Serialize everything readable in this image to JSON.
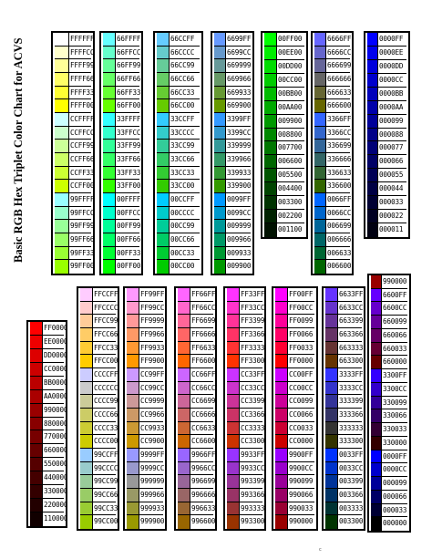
{
  "page": {
    "title": "Basic RGB Hex Triplet Color Chart for ACVS",
    "footnote": "c"
  },
  "columns": [
    {
      "name": "col-ffff",
      "cells": [
        "FFFFFF",
        "FFFFCC",
        "FFFF99",
        "FFFF66",
        "FFFF33",
        "FFFF00",
        "CCFFFF",
        "CCFFCC",
        "CCFF99",
        "CCFF66",
        "CCFF33",
        "CCFF00",
        "99FFFF",
        "99FFCC",
        "99FF99",
        "99FF66",
        "99FF33",
        "99FF00"
      ]
    },
    {
      "name": "col-66ff",
      "cells": [
        "66FFFF",
        "66FFCC",
        "66FF99",
        "66FF66",
        "66FF33",
        "66FF00",
        "33FFFF",
        "33FFCC",
        "33FF99",
        "33FF66",
        "33FF33",
        "33FF00",
        "00FFFF",
        "00FFCC",
        "00FF99",
        "00FF66",
        "00FF33",
        "00FF00"
      ]
    },
    {
      "name": "col-66cc",
      "cells": [
        "66CCFF",
        "66CCCC",
        "66CC99",
        "66CC66",
        "66CC33",
        "66CC00",
        "33CCFF",
        "33CCCC",
        "33CC99",
        "33CC66",
        "33CC33",
        "33CC00",
        "00CCFF",
        "00CCCC",
        "00CC99",
        "00CC66",
        "00CC33",
        "00CC00"
      ]
    },
    {
      "name": "col-6699",
      "cells": [
        "6699FF",
        "6699CC",
        "669999",
        "669966",
        "669933",
        "669900",
        "3399FF",
        "3399CC",
        "339999",
        "339966",
        "339933",
        "339900",
        "0099FF",
        "0099CC",
        "009999",
        "009966",
        "009933",
        "009900"
      ]
    },
    {
      "name": "col-00ff",
      "cells": [
        "00FF00",
        "00EE00",
        "00DD00",
        "00CC00",
        "00BB00",
        "00AA00",
        "009900",
        "008800",
        "007700",
        "006600",
        "005500",
        "004400",
        "003300",
        "002200",
        "001100"
      ]
    },
    {
      "name": "col-6666",
      "cells": [
        "6666FF",
        "6666CC",
        "666699",
        "666666",
        "666633",
        "666600",
        "3366FF",
        "3366CC",
        "336699",
        "336666",
        "336633",
        "336600",
        "0066FF",
        "0066CC",
        "006699",
        "006666",
        "006633",
        "006600"
      ]
    },
    {
      "name": "col-0000-blue",
      "cells": [
        "0000FF",
        "0000EE",
        "0000DD",
        "0000CC",
        "0000BB",
        "0000AA",
        "000099",
        "000088",
        "000077",
        "000066",
        "000055",
        "000044",
        "000033",
        "000022",
        "000011"
      ]
    },
    {
      "name": "col-ff0000",
      "cells": [
        "FF0000",
        "EE0000",
        "DD0000",
        "CC0000",
        "BB0000",
        "AA0000",
        "990000",
        "880000",
        "770000",
        "660000",
        "550000",
        "440000",
        "330000",
        "220000",
        "110000"
      ]
    },
    {
      "name": "col-ffcc",
      "cells": [
        "FFCCFF",
        "FFCCCC",
        "FFCC99",
        "FFCC66",
        "FFCC33",
        "FFCC00",
        "CCCCFF",
        "CCCCCC",
        "CCCC99",
        "CCCC66",
        "CCCC33",
        "CCCC00",
        "99CCFF",
        "99CCCC",
        "99CC99",
        "99CC66",
        "99CC33",
        "99CC00"
      ]
    },
    {
      "name": "col-ff99",
      "cells": [
        "FF99FF",
        "FF99CC",
        "FF9999",
        "FF9966",
        "FF9933",
        "FF9900",
        "CC99FF",
        "CC99CC",
        "CC9999",
        "CC9966",
        "CC9933",
        "CC9900",
        "9999FF",
        "9999CC",
        "999999",
        "999966",
        "999933",
        "999900"
      ]
    },
    {
      "name": "col-ff66",
      "cells": [
        "FF66FF",
        "FF66CC",
        "FF6699",
        "FF6666",
        "FF6633",
        "FF6600",
        "CC66FF",
        "CC66CC",
        "CC6699",
        "CC6666",
        "CC6633",
        "CC6600",
        "9966FF",
        "9966CC",
        "996699",
        "996666",
        "996633",
        "996600"
      ]
    },
    {
      "name": "col-ff33",
      "cells": [
        "FF33FF",
        "FF33CC",
        "FF3399",
        "FF3366",
        "FF3333",
        "FF3300",
        "CC33FF",
        "CC33CC",
        "CC3399",
        "CC3366",
        "CC3333",
        "CC3300",
        "9933FF",
        "9933CC",
        "993399",
        "993366",
        "993333",
        "993300"
      ]
    },
    {
      "name": "col-ff00",
      "cells": [
        "FF00FF",
        "FF00CC",
        "FF0099",
        "FF0066",
        "FF0033",
        "FF0000",
        "CC00FF",
        "CC00CC",
        "CC0099",
        "CC0066",
        "CC0033",
        "CC0000",
        "9900FF",
        "9900CC",
        "990099",
        "990066",
        "990033",
        "990000"
      ]
    },
    {
      "name": "col-6633",
      "cells": [
        "6633FF",
        "6633CC",
        "663399",
        "663366",
        "663333",
        "663300",
        "3333FF",
        "3333CC",
        "333399",
        "333366",
        "333333",
        "333300",
        "0033FF",
        "0033CC",
        "003399",
        "003366",
        "003333",
        "003300"
      ]
    },
    {
      "name": "col-6600",
      "cells": [
        "990000",
        "6600FF",
        "6600CC",
        "660099",
        "660066",
        "660033",
        "660000",
        "3300FF",
        "3300CC",
        "330099",
        "330066",
        "330033",
        "330000",
        "0000FF",
        "0000CC",
        "000099",
        "000066",
        "000033",
        "000000"
      ]
    }
  ]
}
